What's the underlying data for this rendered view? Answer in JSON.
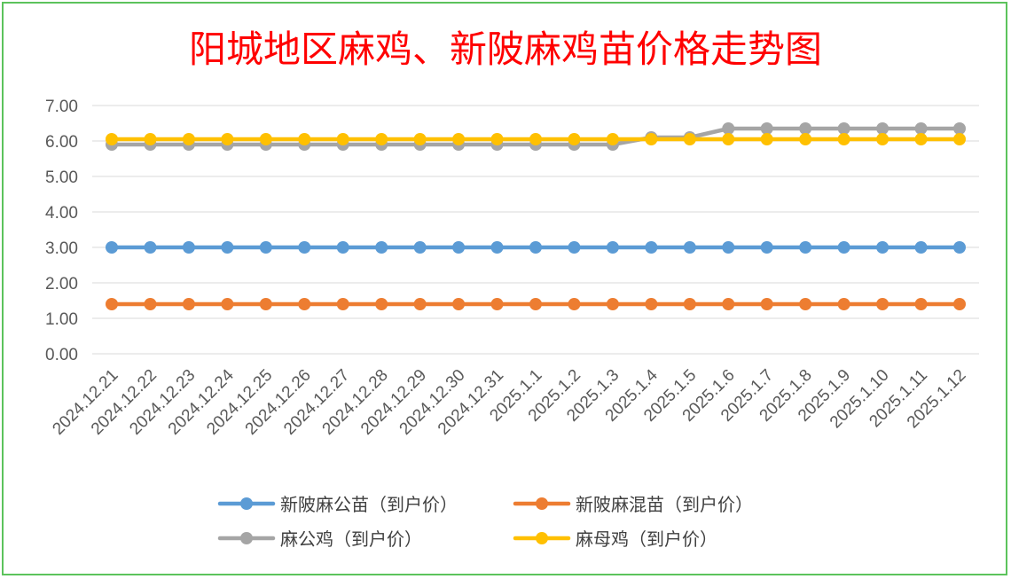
{
  "chart_data": {
    "type": "line",
    "title": "阳城地区麻鸡、新陂麻鸡苗价格走势图",
    "xlabel": "",
    "ylabel": "",
    "ylim": [
      0,
      7
    ],
    "yticks": [
      "0.00",
      "1.00",
      "2.00",
      "3.00",
      "4.00",
      "5.00",
      "6.00",
      "7.00"
    ],
    "categories": [
      "2024.12.21",
      "2024.12.22",
      "2024.12.23",
      "2024.12.24",
      "2024.12.25",
      "2024.12.26",
      "2024.12.27",
      "2024.12.28",
      "2024.12.29",
      "2024.12.30",
      "2024.12.31",
      "2025.1.1",
      "2025.1.2",
      "2025.1.3",
      "2025.1.4",
      "2025.1.5",
      "2025.1.6",
      "2025.1.7",
      "2025.1.8",
      "2025.1.9",
      "2025.1.10",
      "2025.1.11",
      "2025.1.12"
    ],
    "grid": true,
    "legend_position": "bottom",
    "series": [
      {
        "name": "新陂麻公苗（到户价）",
        "color": "#5b9bd5",
        "values": [
          3.0,
          3.0,
          3.0,
          3.0,
          3.0,
          3.0,
          3.0,
          3.0,
          3.0,
          3.0,
          3.0,
          3.0,
          3.0,
          3.0,
          3.0,
          3.0,
          3.0,
          3.0,
          3.0,
          3.0,
          3.0,
          3.0,
          3.0
        ]
      },
      {
        "name": "新陂麻混苗（到户价）",
        "color": "#ed7d31",
        "values": [
          1.4,
          1.4,
          1.4,
          1.4,
          1.4,
          1.4,
          1.4,
          1.4,
          1.4,
          1.4,
          1.4,
          1.4,
          1.4,
          1.4,
          1.4,
          1.4,
          1.4,
          1.4,
          1.4,
          1.4,
          1.4,
          1.4,
          1.4
        ]
      },
      {
        "name": "麻公鸡（到户价）",
        "color": "#a5a5a5",
        "values": [
          5.9,
          5.9,
          5.9,
          5.9,
          5.9,
          5.9,
          5.9,
          5.9,
          5.9,
          5.9,
          5.9,
          5.9,
          5.9,
          5.9,
          6.1,
          6.1,
          6.35,
          6.35,
          6.35,
          6.35,
          6.35,
          6.35,
          6.35
        ]
      },
      {
        "name": "麻母鸡（到户价）",
        "color": "#ffc000",
        "values": [
          6.05,
          6.05,
          6.05,
          6.05,
          6.05,
          6.05,
          6.05,
          6.05,
          6.05,
          6.05,
          6.05,
          6.05,
          6.05,
          6.05,
          6.05,
          6.05,
          6.05,
          6.05,
          6.05,
          6.05,
          6.05,
          6.05,
          6.05
        ]
      }
    ]
  }
}
